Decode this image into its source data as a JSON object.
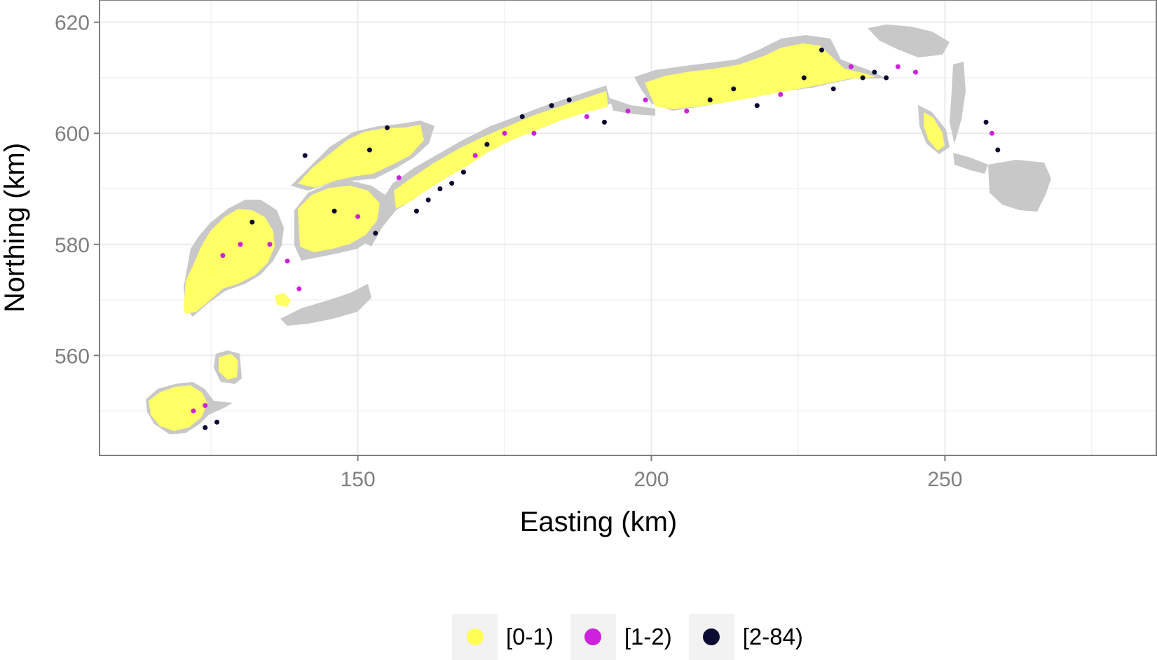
{
  "chart_data": {
    "type": "scatter",
    "xlabel": "Easting (km)",
    "ylabel": "Northing (km)",
    "xlim": [
      106,
      286
    ],
    "ylim": [
      542,
      624
    ],
    "x_ticks": [
      150,
      200,
      250
    ],
    "y_ticks": [
      560,
      580,
      600,
      620
    ],
    "grid": true,
    "legend_position": "bottom",
    "colors": {
      "land": "#c8c8c8",
      "panel_border": "#7f7f7f",
      "grid": "#ebebeb",
      "legend_key_bg": "#f2f2f2"
    },
    "classes": [
      {
        "label": "[0-1)",
        "color": "#ffff55"
      },
      {
        "label": "[1-2)",
        "color": "#cc22dd"
      },
      {
        "label": "[2-84)",
        "color": "#0a0a33"
      }
    ],
    "points": [
      {
        "x": 121,
        "y": 548,
        "c": 0
      },
      {
        "x": 122,
        "y": 550,
        "c": 1
      },
      {
        "x": 124,
        "y": 547,
        "c": 2
      },
      {
        "x": 124,
        "y": 551,
        "c": 1
      },
      {
        "x": 126,
        "y": 548,
        "c": 2
      },
      {
        "x": 125,
        "y": 575,
        "c": 0
      },
      {
        "x": 127,
        "y": 578,
        "c": 1
      },
      {
        "x": 130,
        "y": 580,
        "c": 1
      },
      {
        "x": 132,
        "y": 584,
        "c": 2
      },
      {
        "x": 135,
        "y": 580,
        "c": 1
      },
      {
        "x": 138,
        "y": 577,
        "c": 1
      },
      {
        "x": 140,
        "y": 572,
        "c": 1
      },
      {
        "x": 141,
        "y": 596,
        "c": 2
      },
      {
        "x": 146,
        "y": 586,
        "c": 2
      },
      {
        "x": 150,
        "y": 585,
        "c": 1
      },
      {
        "x": 153,
        "y": 582,
        "c": 2
      },
      {
        "x": 152,
        "y": 597,
        "c": 2
      },
      {
        "x": 155,
        "y": 601,
        "c": 2
      },
      {
        "x": 157,
        "y": 592,
        "c": 1
      },
      {
        "x": 160,
        "y": 586,
        "c": 2
      },
      {
        "x": 162,
        "y": 588,
        "c": 2
      },
      {
        "x": 164,
        "y": 590,
        "c": 2
      },
      {
        "x": 166,
        "y": 591,
        "c": 2
      },
      {
        "x": 168,
        "y": 593,
        "c": 2
      },
      {
        "x": 170,
        "y": 596,
        "c": 1
      },
      {
        "x": 172,
        "y": 598,
        "c": 2
      },
      {
        "x": 175,
        "y": 600,
        "c": 1
      },
      {
        "x": 178,
        "y": 603,
        "c": 2
      },
      {
        "x": 180,
        "y": 600,
        "c": 1
      },
      {
        "x": 183,
        "y": 605,
        "c": 2
      },
      {
        "x": 186,
        "y": 606,
        "c": 2
      },
      {
        "x": 189,
        "y": 603,
        "c": 1
      },
      {
        "x": 192,
        "y": 602,
        "c": 2
      },
      {
        "x": 196,
        "y": 604,
        "c": 1
      },
      {
        "x": 199,
        "y": 606,
        "c": 1
      },
      {
        "x": 206,
        "y": 604,
        "c": 1
      },
      {
        "x": 210,
        "y": 606,
        "c": 2
      },
      {
        "x": 214,
        "y": 608,
        "c": 2
      },
      {
        "x": 218,
        "y": 605,
        "c": 2
      },
      {
        "x": 222,
        "y": 607,
        "c": 1
      },
      {
        "x": 226,
        "y": 610,
        "c": 2
      },
      {
        "x": 229,
        "y": 615,
        "c": 2
      },
      {
        "x": 231,
        "y": 608,
        "c": 2
      },
      {
        "x": 234,
        "y": 612,
        "c": 1
      },
      {
        "x": 236,
        "y": 610,
        "c": 2
      },
      {
        "x": 238,
        "y": 611,
        "c": 2
      },
      {
        "x": 240,
        "y": 610,
        "c": 2
      },
      {
        "x": 242,
        "y": 612,
        "c": 1
      },
      {
        "x": 245,
        "y": 611,
        "c": 1
      },
      {
        "x": 257,
        "y": 602,
        "c": 2
      },
      {
        "x": 258,
        "y": 600,
        "c": 1
      },
      {
        "x": 259,
        "y": 597,
        "c": 2
      }
    ]
  }
}
